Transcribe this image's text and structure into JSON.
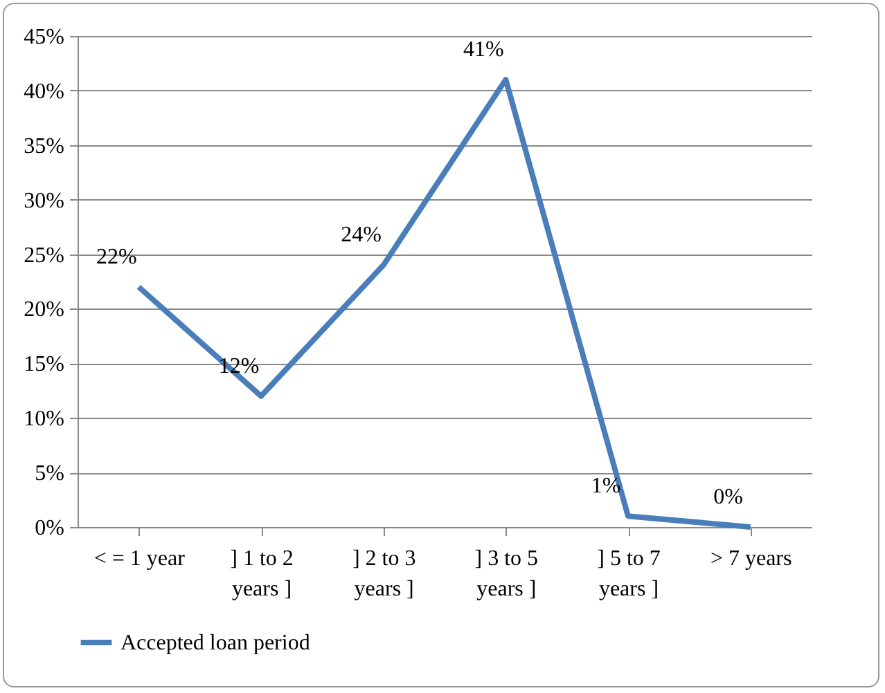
{
  "chart_data": {
    "type": "line",
    "categories": [
      "< = 1 year",
      "] 1 to 2 years ]",
      "] 2 to 3 years ]",
      "] 3 to 5 years ]",
      "] 5 to 7 years ]",
      "> 7 years"
    ],
    "series": [
      {
        "name": "Accepted loan period",
        "color": "#4a7ebb",
        "values": [
          22,
          12,
          24,
          41,
          1,
          0
        ],
        "value_labels": [
          "22%",
          "12%",
          "24%",
          "41%",
          "1%",
          "0%"
        ]
      }
    ],
    "ylim": [
      0,
      45
    ],
    "yticks": [
      {
        "value": 0,
        "label": "0%"
      },
      {
        "value": 5,
        "label": "5%"
      },
      {
        "value": 10,
        "label": "10%"
      },
      {
        "value": 15,
        "label": "15%"
      },
      {
        "value": 20,
        "label": "20%"
      },
      {
        "value": 25,
        "label": "25%"
      },
      {
        "value": 30,
        "label": "30%"
      },
      {
        "value": 35,
        "label": "35%"
      },
      {
        "value": 40,
        "label": "40%"
      },
      {
        "value": 45,
        "label": "45%"
      }
    ],
    "grid": "y",
    "legend": "bottom",
    "marker": "none",
    "line_style": "solid"
  }
}
